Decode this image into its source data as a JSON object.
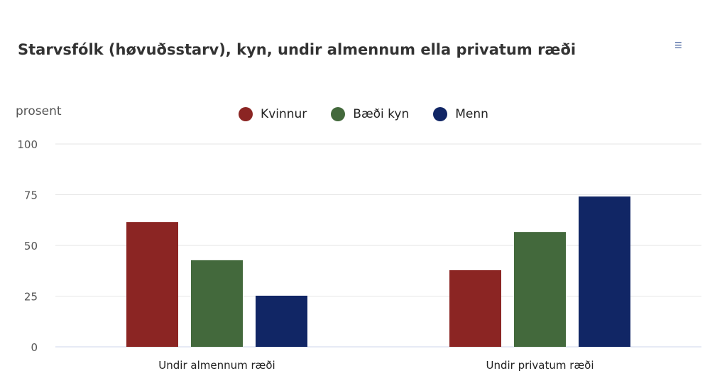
{
  "menu_icon": "hamburger-menu-icon",
  "chart_data": {
    "type": "bar",
    "title": "Starvsfólk (høvuðsstarv), kyn, undir almennum ella privatum ræði",
    "ylabel": "prosent",
    "xlabel": "",
    "ylim": [
      0,
      100
    ],
    "yticks": [
      0,
      25,
      50,
      75,
      100
    ],
    "grid": true,
    "legend_position": "top",
    "categories": [
      "Undir almennum ræði",
      "Undir privatum ræði"
    ],
    "series": [
      {
        "name": "Kvinnur",
        "color": "#8b2523",
        "values": [
          61.5,
          37.8
        ]
      },
      {
        "name": "Bæði kyn",
        "color": "#43693c",
        "values": [
          42.7,
          56.6
        ]
      },
      {
        "name": "Menn",
        "color": "#112665",
        "values": [
          25.2,
          74.1
        ]
      }
    ]
  }
}
